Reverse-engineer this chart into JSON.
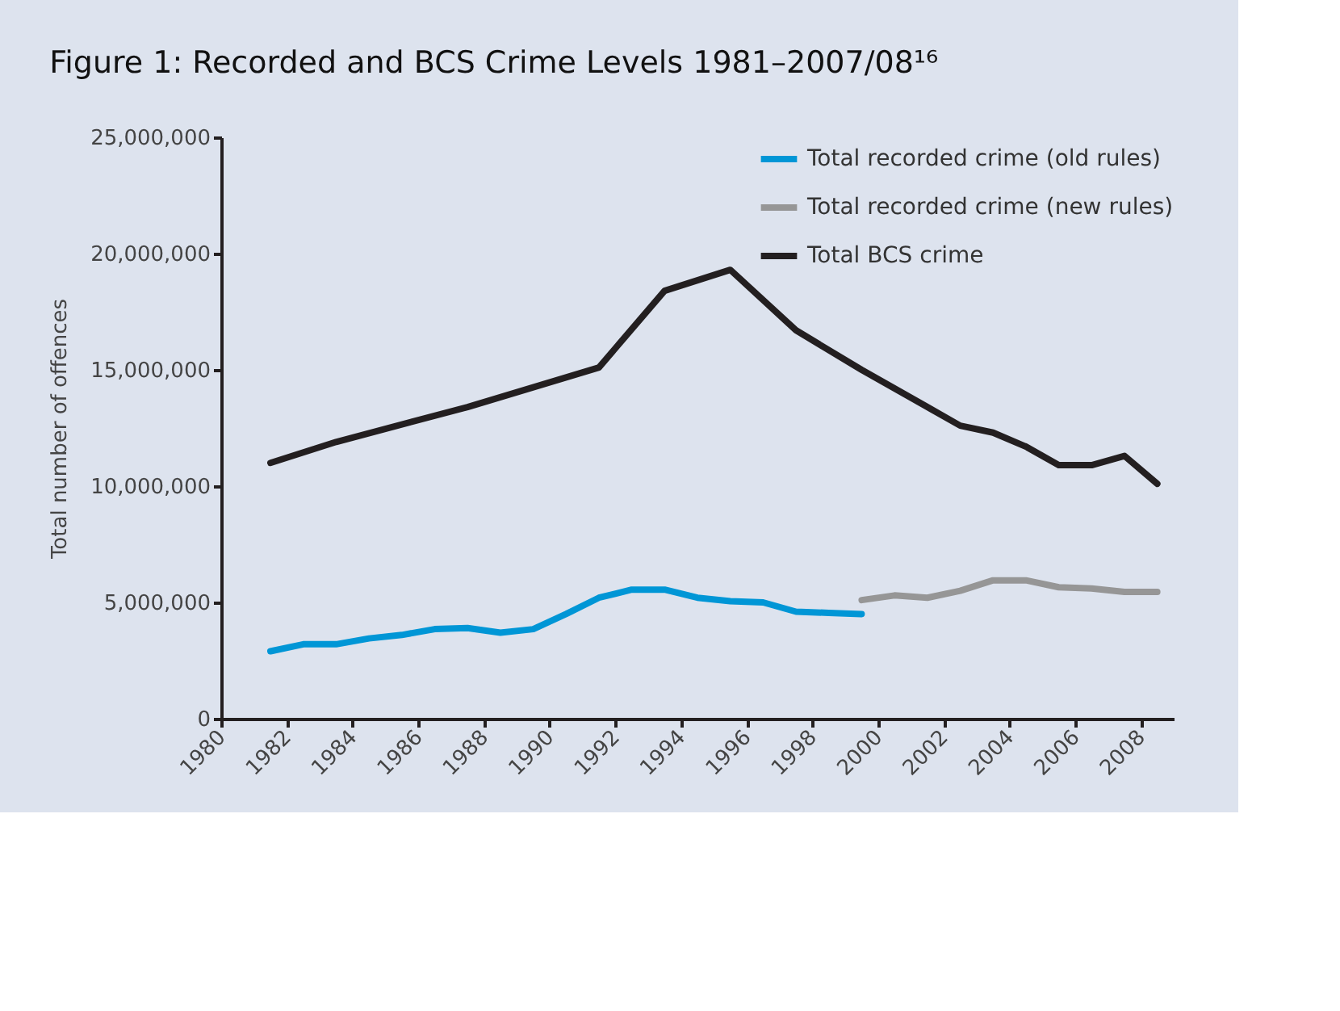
{
  "chart_data": {
    "type": "line",
    "title": "Figure 1: Recorded and BCS Crime Levels 1981–2007/08¹⁶",
    "ylabel": "Total number of offences",
    "xlim": [
      1980,
      2009
    ],
    "xticks": [
      1980,
      1982,
      1984,
      1986,
      1988,
      1990,
      1992,
      1994,
      1996,
      1998,
      2000,
      2002,
      2004,
      2006,
      2008
    ],
    "ylim": [
      0,
      25000000
    ],
    "yticks": [
      {
        "value": 0,
        "label": "0"
      },
      {
        "value": 5000000,
        "label": "5,000,000"
      },
      {
        "value": 10000000,
        "label": "10,000,000"
      },
      {
        "value": 15000000,
        "label": "15,000,000"
      },
      {
        "value": 20000000,
        "label": "20,000,000"
      },
      {
        "value": 25000000,
        "label": "25,000,000"
      }
    ],
    "grid": false,
    "legend": "top right",
    "line_style": "solid",
    "marker": "none",
    "series": [
      {
        "name": "Total recorded crime (old rules)",
        "color": "#0096d6",
        "x": [
          1981.5,
          1982.5,
          1983.5,
          1984.5,
          1985.5,
          1986.5,
          1987.5,
          1988.5,
          1989.5,
          1990.5,
          1991.5,
          1992.5,
          1993.5,
          1994.5,
          1995.5,
          1996.5,
          1997.5,
          1998.5,
          1999.5
        ],
        "values": [
          2900000,
          3200000,
          3200000,
          3450000,
          3600000,
          3850000,
          3900000,
          3700000,
          3850000,
          4500000,
          5200000,
          5550000,
          5550000,
          5200000,
          5050000,
          5000000,
          4600000,
          4550000,
          4500000
        ]
      },
      {
        "name": "Total recorded crime (new rules)",
        "color": "#969696",
        "x": [
          1999.5,
          2000.5,
          2001.5,
          2002.5,
          2003.5,
          2004.5,
          2005.5,
          2006.5,
          2007.5,
          2008.5
        ],
        "values": [
          5100000,
          5300000,
          5200000,
          5500000,
          5950000,
          5950000,
          5650000,
          5600000,
          5450000,
          5450000
        ]
      },
      {
        "name": "Total BCS crime",
        "color": "#231f20",
        "x": [
          1981.5,
          1983.5,
          1987.5,
          1991.5,
          1993.5,
          1995.5,
          1997.5,
          1999.5,
          2001.5,
          2002.5,
          2003.5,
          2004.5,
          2005.5,
          2006.5,
          2007.5,
          2008.5
        ],
        "values": [
          11000000,
          11900000,
          13400000,
          15100000,
          18400000,
          19300000,
          16700000,
          15000000,
          13400000,
          12600000,
          12300000,
          11700000,
          10900000,
          10900000,
          11300000,
          10100000
        ]
      }
    ]
  }
}
